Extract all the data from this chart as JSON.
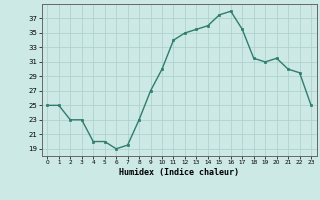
{
  "x": [
    0,
    1,
    2,
    3,
    4,
    5,
    6,
    7,
    8,
    9,
    10,
    11,
    12,
    13,
    14,
    15,
    16,
    17,
    18,
    19,
    20,
    21,
    22,
    23
  ],
  "y": [
    25,
    25,
    23,
    23,
    20,
    20,
    19,
    19.5,
    23,
    27,
    30,
    34,
    35,
    35.5,
    36,
    37.5,
    38,
    35.5,
    31.5,
    31,
    31.5,
    30,
    29.5,
    25
  ],
  "line_color": "#2e7d6e",
  "marker_color": "#2e7d6e",
  "bg_color": "#cce9e5",
  "grid_color": "#aacfca",
  "xlabel": "Humidex (Indice chaleur)",
  "xlim": [
    -0.5,
    23.5
  ],
  "ylim": [
    18,
    39
  ],
  "yticks": [
    19,
    21,
    23,
    25,
    27,
    29,
    31,
    33,
    35,
    37
  ],
  "xtick_labels": [
    "0",
    "1",
    "2",
    "3",
    "4",
    "5",
    "6",
    "7",
    "8",
    "9",
    "10",
    "11",
    "12",
    "13",
    "14",
    "15",
    "16",
    "17",
    "18",
    "19",
    "20",
    "21",
    "22",
    "23"
  ]
}
